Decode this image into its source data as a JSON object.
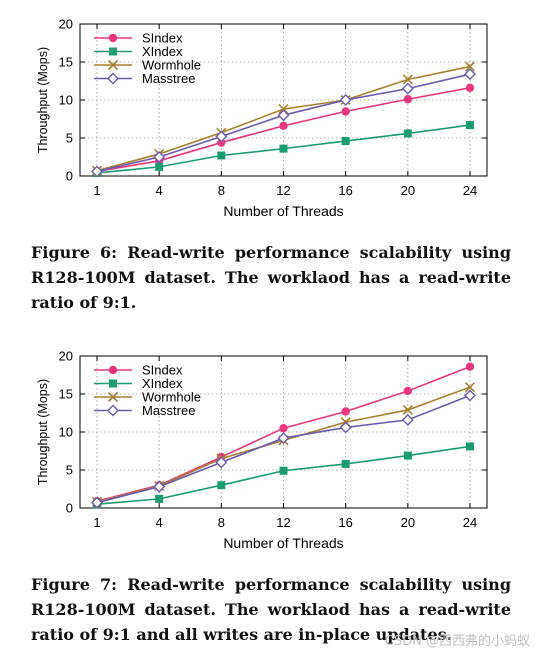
{
  "chart_data": [
    {
      "type": "line",
      "xlabel": "Number of Threads",
      "ylabel": "Throughput (Mops)",
      "categories": [
        "1",
        "4",
        "8",
        "12",
        "16",
        "20",
        "24"
      ],
      "ylim": [
        0,
        20
      ],
      "yticks": [
        0,
        5,
        10,
        15,
        20
      ],
      "grid": true,
      "legend_position": "top-left",
      "series": [
        {
          "name": "SIndex",
          "color": "#e8367f",
          "marker": "circle",
          "values": [
            0.6,
            2.0,
            4.4,
            6.6,
            8.5,
            10.1,
            11.6
          ]
        },
        {
          "name": "XIndex",
          "color": "#1a9b72",
          "marker": "square",
          "values": [
            0.4,
            1.2,
            2.7,
            3.6,
            4.6,
            5.6,
            6.7
          ]
        },
        {
          "name": "Wormhole",
          "color": "#a87f2e",
          "marker": "cross",
          "values": [
            0.7,
            2.9,
            5.7,
            8.8,
            10.0,
            12.7,
            14.4
          ]
        },
        {
          "name": "Masstree",
          "color": "#6a5ab0",
          "marker": "diamond",
          "values": [
            0.6,
            2.5,
            5.2,
            8.0,
            10.0,
            11.5,
            13.4
          ]
        }
      ]
    },
    {
      "type": "line",
      "xlabel": "Number of Threads",
      "ylabel": "Throughput (Mops)",
      "categories": [
        "1",
        "4",
        "8",
        "12",
        "16",
        "20",
        "24"
      ],
      "ylim": [
        0,
        20
      ],
      "yticks": [
        0,
        5,
        10,
        15,
        20
      ],
      "grid": true,
      "legend_position": "top-left",
      "series": [
        {
          "name": "SIndex",
          "color": "#e8367f",
          "marker": "circle",
          "values": [
            0.9,
            3.0,
            6.7,
            10.5,
            12.7,
            15.4,
            18.6
          ]
        },
        {
          "name": "XIndex",
          "color": "#1a9b72",
          "marker": "square",
          "values": [
            0.5,
            1.2,
            3.0,
            4.9,
            5.8,
            6.9,
            8.1
          ]
        },
        {
          "name": "Wormhole",
          "color": "#a87f2e",
          "marker": "cross",
          "values": [
            0.8,
            2.9,
            6.5,
            8.9,
            11.3,
            12.9,
            15.9
          ]
        },
        {
          "name": "Masstree",
          "color": "#6a5ab0",
          "marker": "diamond",
          "values": [
            0.7,
            2.8,
            6.0,
            9.2,
            10.6,
            11.6,
            14.8
          ]
        }
      ]
    }
  ],
  "captions": [
    "Figure 6: Read-write performance scalability using R128-100M dataset. The worklaod has a read-write ratio of 9:1.",
    "Figure 7: Read-write performance scalability using R128-100M dataset. The worklaod has a read-write ratio of 9:1 and all writes are in-place updates."
  ],
  "watermark": "CSDN @西西弗的小蚂蚁"
}
